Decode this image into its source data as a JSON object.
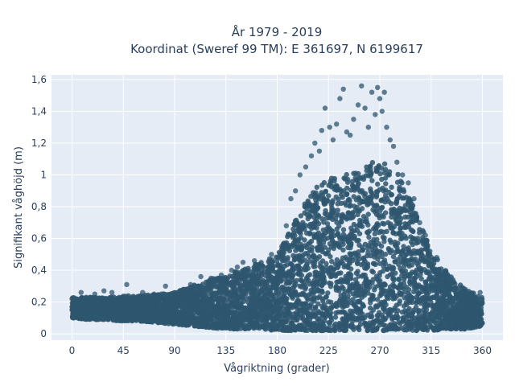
{
  "chart_data": {
    "type": "scatter",
    "title_line1": "År 1979 - 2019",
    "title_line2": "Koordinat (Sweref 99 TM): E 361697, N 6199617",
    "xlabel": "Vågriktning (grader)",
    "ylabel": "Signifikant våghöjd (m)",
    "xlim": [
      -18,
      378
    ],
    "ylim": [
      -0.04,
      1.63
    ],
    "x_ticks": [
      0,
      45,
      90,
      135,
      180,
      225,
      270,
      315,
      360
    ],
    "x_tick_labels": [
      "0",
      "45",
      "90",
      "135",
      "180",
      "225",
      "270",
      "315",
      "360"
    ],
    "y_ticks": [
      0,
      0.2,
      0.4,
      0.6,
      0.8,
      1,
      1.2,
      1.4,
      1.6
    ],
    "y_tick_labels": [
      "0",
      "0,2",
      "0,4",
      "0,6",
      "0,8",
      "1",
      "1,2",
      "1,4",
      "1,6"
    ],
    "grid": true,
    "legend": "none",
    "colors": {
      "marker": "#2e566e",
      "plot_bg": "#e5ecf6",
      "grid": "#ffffff",
      "text": "#2a3f5f"
    },
    "envelope": {
      "direction_deg": [
        0,
        15,
        30,
        45,
        60,
        75,
        90,
        105,
        120,
        135,
        150,
        165,
        180,
        195,
        210,
        225,
        240,
        255,
        270,
        285,
        300,
        315,
        330,
        345,
        360
      ],
      "hs_min_m": [
        0.1,
        0.09,
        0.09,
        0.08,
        0.08,
        0.07,
        0.06,
        0.05,
        0.04,
        0.03,
        0.03,
        0.03,
        0.02,
        0.02,
        0.02,
        0.02,
        0.02,
        0.02,
        0.02,
        0.02,
        0.02,
        0.02,
        0.03,
        0.03,
        0.05
      ],
      "hs_max_m": [
        0.23,
        0.23,
        0.23,
        0.24,
        0.24,
        0.25,
        0.26,
        0.3,
        0.34,
        0.37,
        0.41,
        0.45,
        0.49,
        0.7,
        0.9,
        0.98,
        1.0,
        1.05,
        1.1,
        1.02,
        0.8,
        0.52,
        0.38,
        0.28,
        0.23
      ]
    },
    "outliers": [
      {
        "x": 0,
        "y": 0.22
      },
      {
        "x": 8,
        "y": 0.26
      },
      {
        "x": 20,
        "y": 0.25
      },
      {
        "x": 28,
        "y": 0.27
      },
      {
        "x": 35,
        "y": 0.26
      },
      {
        "x": 48,
        "y": 0.31
      },
      {
        "x": 62,
        "y": 0.26
      },
      {
        "x": 72,
        "y": 0.25
      },
      {
        "x": 82,
        "y": 0.3
      },
      {
        "x": 98,
        "y": 0.28
      },
      {
        "x": 104,
        "y": 0.31
      },
      {
        "x": 113,
        "y": 0.36
      },
      {
        "x": 122,
        "y": 0.35
      },
      {
        "x": 131,
        "y": 0.37
      },
      {
        "x": 140,
        "y": 0.4
      },
      {
        "x": 145,
        "y": 0.42
      },
      {
        "x": 150,
        "y": 0.45
      },
      {
        "x": 160,
        "y": 0.46
      },
      {
        "x": 175,
        "y": 0.5
      },
      {
        "x": 184,
        "y": 0.55
      },
      {
        "x": 188,
        "y": 0.68
      },
      {
        "x": 192,
        "y": 0.85
      },
      {
        "x": 196,
        "y": 0.9
      },
      {
        "x": 200,
        "y": 1.0
      },
      {
        "x": 205,
        "y": 1.05
      },
      {
        "x": 210,
        "y": 1.12
      },
      {
        "x": 213,
        "y": 1.2
      },
      {
        "x": 217,
        "y": 1.15
      },
      {
        "x": 219,
        "y": 1.28
      },
      {
        "x": 222,
        "y": 1.42
      },
      {
        "x": 226,
        "y": 1.3
      },
      {
        "x": 229,
        "y": 1.22
      },
      {
        "x": 232,
        "y": 1.32
      },
      {
        "x": 235,
        "y": 1.48
      },
      {
        "x": 238,
        "y": 1.54
      },
      {
        "x": 241,
        "y": 1.27
      },
      {
        "x": 244,
        "y": 1.25
      },
      {
        "x": 247,
        "y": 1.35
      },
      {
        "x": 251,
        "y": 1.44
      },
      {
        "x": 254,
        "y": 1.56
      },
      {
        "x": 257,
        "y": 1.42
      },
      {
        "x": 260,
        "y": 1.3
      },
      {
        "x": 263,
        "y": 1.52
      },
      {
        "x": 266,
        "y": 1.38
      },
      {
        "x": 268,
        "y": 1.55
      },
      {
        "x": 270,
        "y": 1.48
      },
      {
        "x": 272,
        "y": 1.4
      },
      {
        "x": 274,
        "y": 1.52
      },
      {
        "x": 276,
        "y": 1.3
      },
      {
        "x": 279,
        "y": 1.22
      },
      {
        "x": 282,
        "y": 1.18
      },
      {
        "x": 285,
        "y": 1.08
      },
      {
        "x": 290,
        "y": 1.0
      },
      {
        "x": 295,
        "y": 0.95
      },
      {
        "x": 300,
        "y": 0.85
      },
      {
        "x": 305,
        "y": 0.7
      },
      {
        "x": 310,
        "y": 0.62
      },
      {
        "x": 314,
        "y": 0.52
      },
      {
        "x": 320,
        "y": 0.48
      },
      {
        "x": 325,
        "y": 0.38
      },
      {
        "x": 333,
        "y": 0.32
      },
      {
        "x": 345,
        "y": 0.28
      },
      {
        "x": 352,
        "y": 0.24
      },
      {
        "x": 358,
        "y": 0.26
      }
    ]
  }
}
